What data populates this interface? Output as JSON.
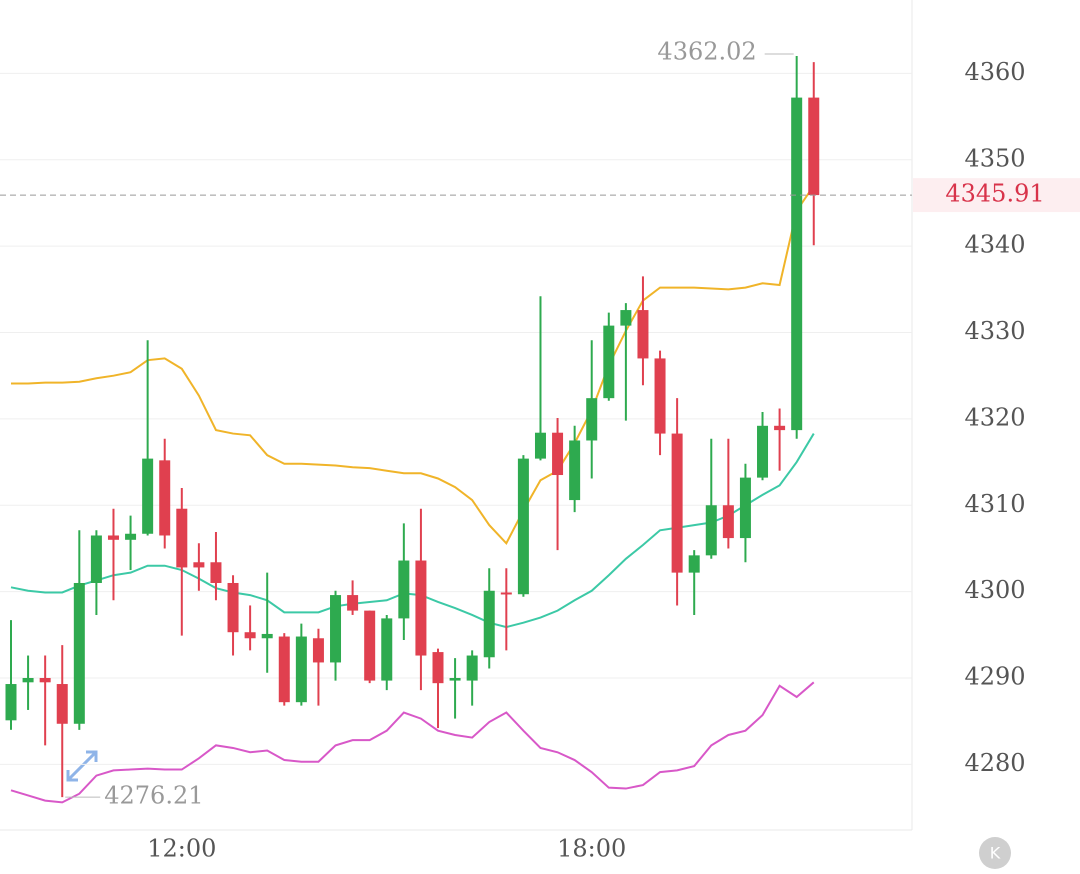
{
  "chart_data": {
    "type": "candlestick",
    "categories": [
      null,
      null,
      null,
      null,
      null,
      null,
      null,
      null,
      null,
      null,
      "12:00",
      null,
      null,
      null,
      null,
      null,
      null,
      null,
      null,
      null,
      null,
      null,
      null,
      null,
      null,
      null,
      null,
      null,
      null,
      null,
      null,
      null,
      null,
      null,
      "18:00",
      null,
      null,
      null,
      null,
      null,
      null,
      null,
      null,
      null,
      null,
      null,
      null,
      null
    ],
    "open": [
      4285.1,
      4289.5,
      4290.0,
      4289.3,
      4284.7,
      4301.0,
      4306.5,
      4306.0,
      4306.7,
      4315.2,
      4309.6,
      4303.4,
      4303.4,
      4301.0,
      4295.3,
      4294.6,
      4294.8,
      4287.2,
      4294.6,
      4291.8,
      4299.6,
      4297.8,
      4289.7,
      4296.9,
      4303.6,
      4293.0,
      4289.7,
      4289.7,
      4292.4,
      4299.9,
      4299.7,
      4315.4,
      4318.4,
      4310.6,
      4317.5,
      4322.4,
      4330.8,
      4332.6,
      4327.0,
      4318.3,
      4302.2,
      4304.2,
      4310.0,
      4306.2,
      4313.2,
      4319.2,
      4318.7,
      4357.2
    ],
    "high": [
      4296.7,
      4292.6,
      4292.6,
      4293.8,
      4307.1,
      4307.1,
      4309.6,
      4308.8,
      4329.1,
      4317.7,
      4312.0,
      4305.6,
      4306.9,
      4301.9,
      4298.4,
      4302.2,
      4295.2,
      4296.3,
      4295.7,
      4300.1,
      4301.3,
      4297.8,
      4297.3,
      4307.9,
      4309.6,
      4293.4,
      4292.3,
      4293.2,
      4302.7,
      4302.7,
      4315.8,
      4334.2,
      4320.1,
      4319.2,
      4329.1,
      4332.3,
      4333.4,
      4336.5,
      4327.9,
      4322.4,
      4304.8,
      4317.7,
      4317.7,
      4314.8,
      4320.8,
      4321.2,
      4362.02,
      4361.3
    ],
    "low": [
      4284.0,
      4286.3,
      4282.2,
      4276.21,
      4284.0,
      4297.3,
      4299.0,
      4302.5,
      4306.5,
      4305.0,
      4294.9,
      4300.1,
      4299.0,
      4292.6,
      4293.2,
      4290.6,
      4286.8,
      4286.8,
      4286.8,
      4289.7,
      4297.3,
      4289.4,
      4288.6,
      4294.4,
      4288.6,
      4284.2,
      4285.3,
      4286.8,
      4291.1,
      4293.2,
      4299.4,
      4315.2,
      4304.8,
      4309.2,
      4313.1,
      4322.1,
      4319.8,
      4323.9,
      4315.8,
      4298.4,
      4297.3,
      4303.8,
      4305.0,
      4303.4,
      4312.9,
      4314.0,
      4317.7,
      4340.1
    ],
    "close": [
      4289.3,
      4290.0,
      4289.5,
      4284.7,
      4301.0,
      4306.5,
      4306.0,
      4306.7,
      4315.4,
      4306.5,
      4302.8,
      4302.8,
      4301.0,
      4295.3,
      4294.6,
      4295.1,
      4287.2,
      4294.8,
      4291.8,
      4299.6,
      4297.8,
      4289.7,
      4296.9,
      4303.6,
      4292.6,
      4289.4,
      4290.0,
      4292.6,
      4300.1,
      4299.7,
      4315.4,
      4318.4,
      4313.5,
      4317.5,
      4322.4,
      4330.8,
      4332.6,
      4327.0,
      4318.3,
      4302.2,
      4304.2,
      4310.0,
      4306.2,
      4313.2,
      4319.2,
      4318.7,
      4357.2,
      4345.91
    ],
    "up_color": "#2eaa4f",
    "down_color": "#e0404f",
    "overlays": [
      {
        "color": "#f0b429",
        "values": [
          4324.1,
          4324.1,
          4324.2,
          4324.2,
          4324.3,
          4324.7,
          4325.0,
          4325.4,
          4326.8,
          4327.0,
          4325.8,
          4322.7,
          4318.7,
          4318.3,
          4318.1,
          4315.8,
          4314.8,
          4314.8,
          4314.7,
          4314.6,
          4314.4,
          4314.3,
          4314.0,
          4313.7,
          4313.7,
          4313.1,
          4312.1,
          4310.6,
          4307.7,
          4305.6,
          4309.4,
          4312.9,
          4314.0,
          4317.2,
          4321.0,
          4326.2,
          4330.2,
          4333.7,
          4335.2,
          4335.2,
          4335.2,
          4335.1,
          4335.0,
          4335.2,
          4335.7,
          4335.5,
          4344.1,
          4347.0
        ]
      },
      {
        "color": "#3cc9a6",
        "values": [
          4300.5,
          4300.1,
          4299.9,
          4299.9,
          4300.7,
          4301.3,
          4301.9,
          4302.2,
          4303.0,
          4303.0,
          4302.5,
          4301.5,
          4300.4,
          4299.9,
          4299.6,
          4299.0,
          4297.6,
          4297.6,
          4297.6,
          4298.3,
          4298.6,
          4298.8,
          4299.0,
          4299.8,
          4299.6,
          4298.8,
          4298.1,
          4297.3,
          4296.4,
          4295.9,
          4296.4,
          4297.0,
          4297.8,
          4299.0,
          4300.1,
          4301.9,
          4303.8,
          4305.4,
          4307.1,
          4307.4,
          4307.7,
          4308.0,
          4308.8,
          4310.0,
          4311.2,
          4312.3,
          4315.0,
          4318.3
        ]
      },
      {
        "color": "#d858c8",
        "values": [
          4277.0,
          4276.4,
          4275.8,
          4275.6,
          4276.6,
          4278.7,
          4279.3,
          4279.4,
          4279.5,
          4279.4,
          4279.4,
          4280.7,
          4282.2,
          4281.9,
          4281.4,
          4281.6,
          4280.5,
          4280.3,
          4280.3,
          4282.2,
          4282.8,
          4282.8,
          4283.9,
          4286.0,
          4285.3,
          4283.9,
          4283.4,
          4283.1,
          4284.9,
          4286.0,
          4283.9,
          4281.9,
          4281.4,
          4280.5,
          4279.1,
          4277.3,
          4277.2,
          4277.6,
          4279.1,
          4279.3,
          4279.8,
          4282.2,
          4283.4,
          4283.9,
          4285.7,
          4289.1,
          4287.8,
          4289.5
        ]
      }
    ],
    "ylim": [
      4272.4,
      4368.5
    ],
    "yticks": [
      4280,
      4290,
      4300,
      4310,
      4320,
      4330,
      4340,
      4350,
      4360
    ],
    "grid": true
  }
}
